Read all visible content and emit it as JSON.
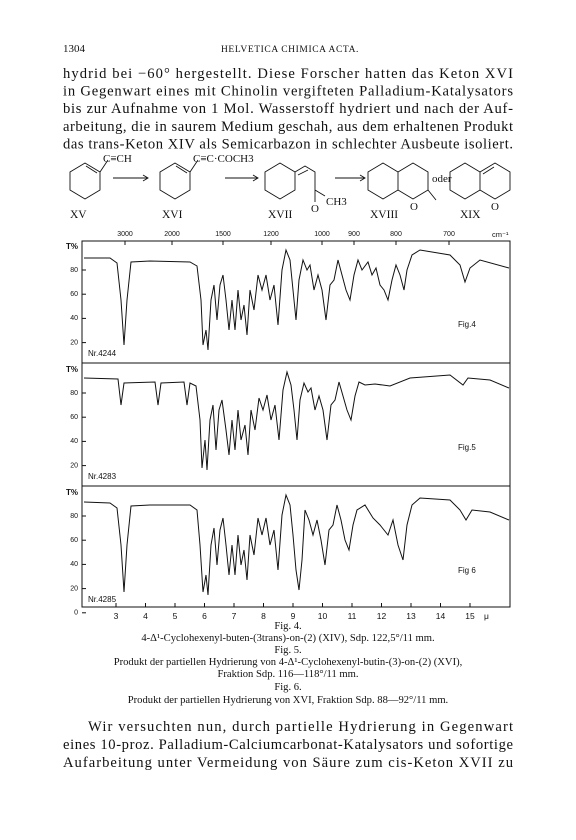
{
  "header": {
    "page_number": "1304",
    "journal": "HELVETICA CHIMICA ACTA."
  },
  "text_top": {
    "lines": [
      "hydrid bei −60° hergestellt. Diese Forscher hatten das Keton XVI",
      "in Gegenwart eines mit Chinolin vergifteten Palladium-Katalysators",
      "bis zur Aufnahme von 1 Mol. Wasserstoff hydriert und nach der Auf-",
      "arbeitung, die in saurem Medium geschah, aus dem erhaltenen Produkt",
      "das trans-Keton XIV als Semicarbazon in schlechter Ausbeute isoliert."
    ]
  },
  "structures": {
    "substituent_xv": "C≡CH",
    "substituent_xvi": "C≡C·COCH3",
    "oxygen_xvii": "O",
    "methyl_xvii": "CH3",
    "conjunction": "oder",
    "oxygen_xviii": "O",
    "oxygen_xix": "O",
    "labels": [
      "XV",
      "XVI",
      "XVII",
      "XVIII",
      "XIX"
    ]
  },
  "figure": {
    "wavenumber_ticks": [
      "3000",
      "2000",
      "1500",
      "1200",
      "1000",
      "900",
      "800",
      "700"
    ],
    "wavenumber_unit": "cm⁻¹",
    "panels": [
      {
        "y_label": "T%",
        "yticks": [
          "80",
          "60",
          "40",
          "20"
        ],
        "sample": "Nr.4244",
        "fig_label": "Fig.4"
      },
      {
        "y_label": "T%",
        "yticks": [
          "80",
          "60",
          "40",
          "20"
        ],
        "sample": "Nr.4283",
        "fig_label": "Fig.5"
      },
      {
        "y_label": "T%",
        "yticks": [
          "80",
          "60",
          "40",
          "20",
          "0"
        ],
        "sample": "Nr.4285",
        "fig_label": "Fig 6"
      }
    ],
    "wavelength_ticks": [
      "3",
      "4",
      "5",
      "6",
      "7",
      "8",
      "9",
      "10",
      "11",
      "12",
      "13",
      "14",
      "15"
    ],
    "wavelength_unit": "μ"
  },
  "captions": [
    "Fig. 4.",
    "4-Δ¹-Cyclohexenyl-buten-(3trans)-on-(2) (XIV), Sdp. 122,5°/11 mm.",
    "Fig. 5.",
    "Produkt der partiellen Hydrierung von 4-Δ¹-Cyclohexenyl-butin-(3)-on-(2) (XVI),",
    "Fraktion Sdp. 116—118°/11 mm.",
    "Fig. 6.",
    "Produkt der partiellen Hydrierung von XVI, Fraktion Sdp. 88—92°/11 mm."
  ],
  "text_bottom": {
    "lines": [
      "Wir versuchten nun, durch partielle Hydrierung in Gegenwart",
      "eines 10-proz. Palladium-Calciumcarbonat-Katalysators und sofortige",
      "Aufarbeitung unter Vermeidung von Säure zum cis-Keton XVII zu"
    ]
  }
}
